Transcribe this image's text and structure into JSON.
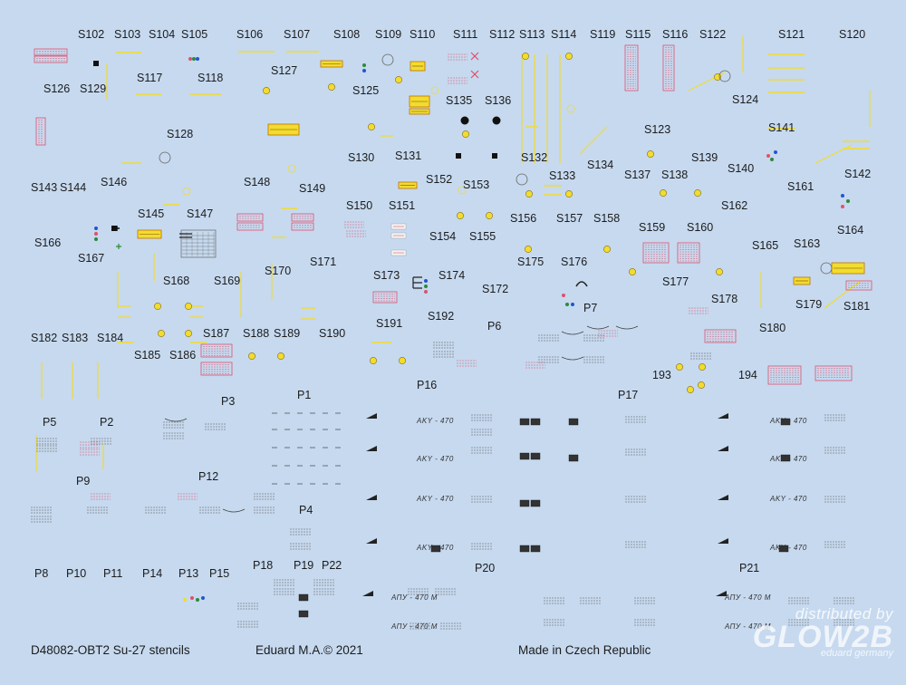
{
  "labels": [
    "S102",
    "S103",
    "S104",
    "S105",
    "S106",
    "S107",
    "S108",
    "S109",
    "S110",
    "S111",
    "S112",
    "S113",
    "S114",
    "S119",
    "S115",
    "S116",
    "S122",
    "S121",
    "S120",
    "S126",
    "S129",
    "S117",
    "S118",
    "S127",
    "S125",
    "S135",
    "S136",
    "S124",
    "S128",
    "S123",
    "S141",
    "S130",
    "S131",
    "S132",
    "S134",
    "S137",
    "S138",
    "S139",
    "S140",
    "S142",
    "S143",
    "S144",
    "S146",
    "S148",
    "S149",
    "S152",
    "S153",
    "S133",
    "S161",
    "S150",
    "S151",
    "S156",
    "S157",
    "S158",
    "S162",
    "S145",
    "S147",
    "S154",
    "S155",
    "S159",
    "S160",
    "S164",
    "S166",
    "S165",
    "S163",
    "S167",
    "S170",
    "S171",
    "S175",
    "S176",
    "S168",
    "S169",
    "S173",
    "S174",
    "S172",
    "S177",
    "S178",
    "S179",
    "S181",
    "P7",
    "S191",
    "S192",
    "P6",
    "S180",
    "S182",
    "S183",
    "S184",
    "S187",
    "S188",
    "S189",
    "S190",
    "S185",
    "S186",
    "193",
    "194",
    "P16",
    "P1",
    "P17",
    "P3",
    "P5",
    "P2",
    "P9",
    "P12",
    "P4",
    "P8",
    "P10",
    "P11",
    "P14",
    "P13",
    "P15",
    "P18",
    "P19",
    "P22",
    "P20",
    "P21"
  ],
  "aky": [
    "AKY - 470",
    "AKY - 470",
    "AKY - 470",
    "AKY - 470",
    "AKY - 470",
    "AKY - 470",
    "AKY - 470",
    "AKY - 470",
    "АПУ - 470 М",
    "АПУ - 470 М",
    "АПУ - 470 М",
    "АПУ - 470 М"
  ],
  "footer": {
    "code": "D48082-OBT2 Su-27 stencils",
    "copyright": "Eduard M.A.© 2021",
    "origin": "Made in Czech Republic"
  },
  "watermark": {
    "line1": "distributed by",
    "logo": "GLOW2B",
    "line2": "eduard germany"
  }
}
